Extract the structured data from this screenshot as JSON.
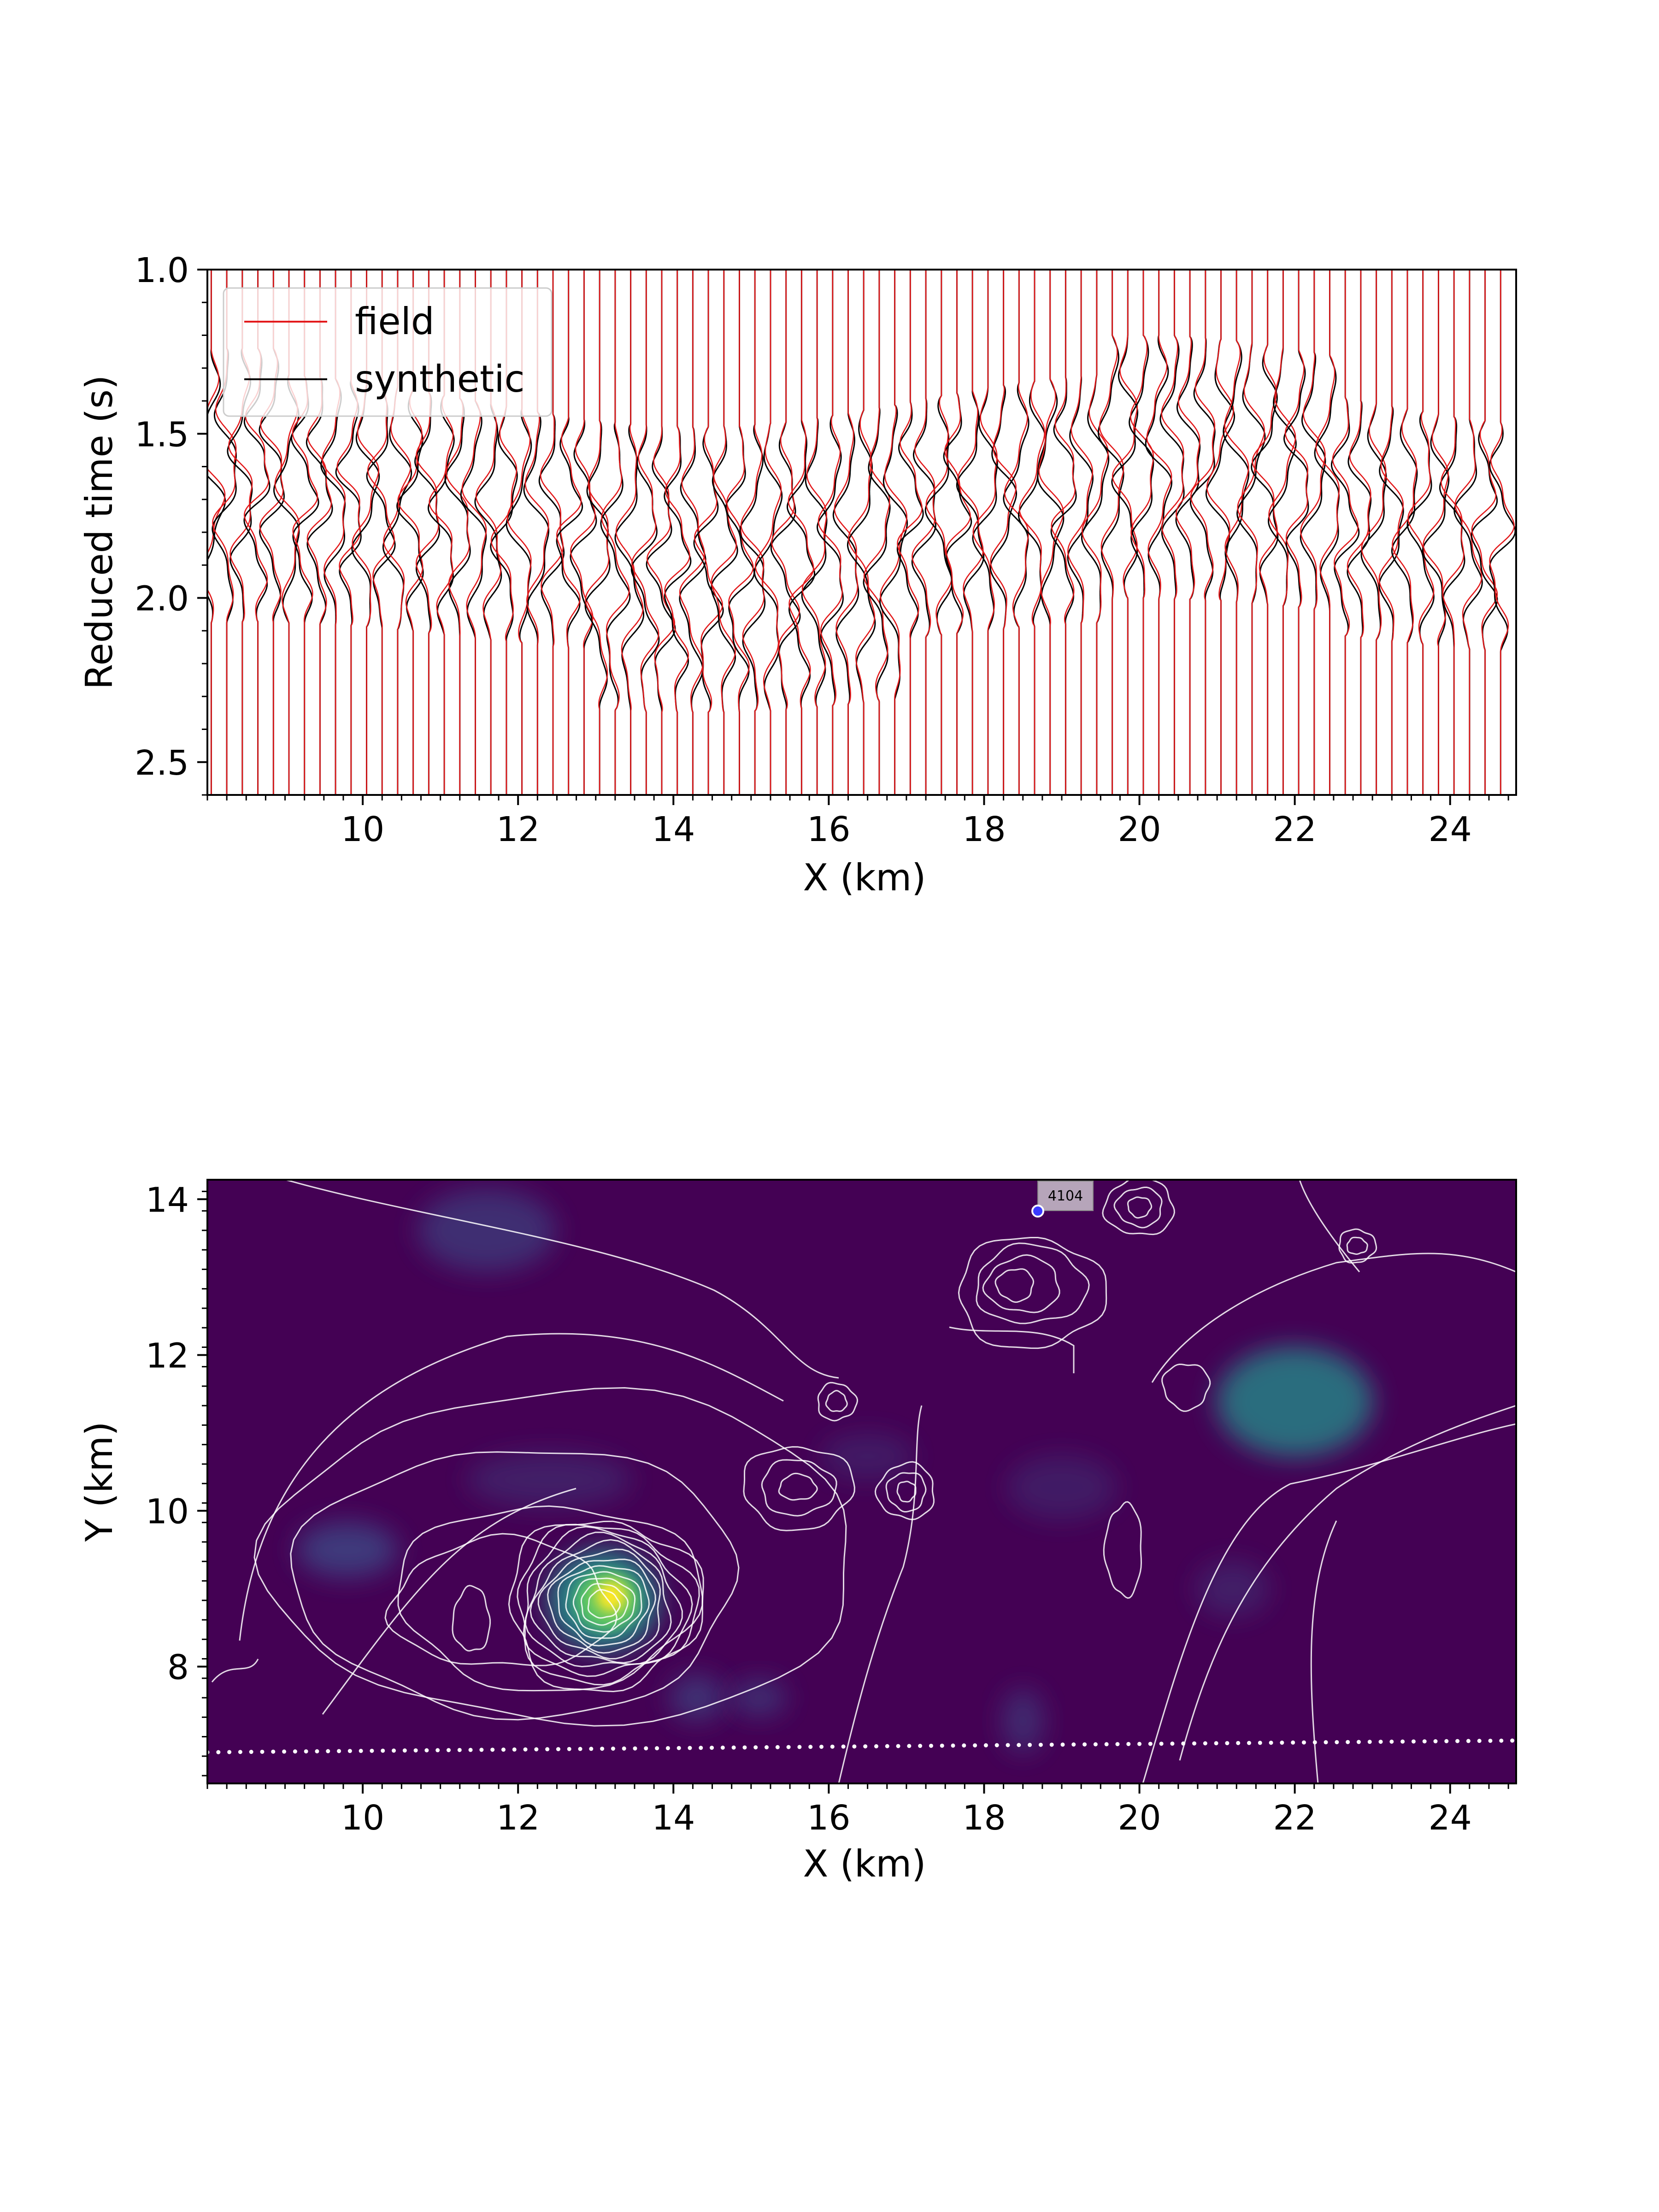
{
  "chart_data": [
    {
      "type": "line",
      "description_role": "wiggle traces (seismic record section)",
      "xlabel": "X (km)",
      "ylabel": "Reduced time (s)",
      "xlim": [
        8.0,
        24.85
      ],
      "ylim": [
        2.6,
        1.0
      ],
      "y_inverted": true,
      "xticks": [
        "10",
        "12",
        "14",
        "16",
        "18",
        "20",
        "22",
        "24"
      ],
      "yticks": [
        "1.0",
        "1.5",
        "2.0",
        "2.5"
      ],
      "legend": {
        "placement": "upper-left",
        "entries": [
          {
            "label": "field",
            "color": "#e31a1c"
          },
          {
            "label": "synthetic",
            "color": "#000000"
          }
        ]
      },
      "series": [
        {
          "name": "field",
          "color": "#e31a1c"
        },
        {
          "name": "synthetic",
          "color": "#000000"
        }
      ],
      "trace_spacing_km": 0.2,
      "trace_count": 84,
      "signal_window_s": [
        1.3,
        2.3
      ],
      "grid": false
    },
    {
      "type": "heatmap",
      "description_role": "map view with colour field, white contours, station positions",
      "xlabel": "X (km)",
      "ylabel": "Y (km)",
      "xlim": [
        8.0,
        24.85
      ],
      "ylim": [
        6.5,
        14.25
      ],
      "xticks": [
        "10",
        "12",
        "14",
        "16",
        "18",
        "20",
        "22",
        "24"
      ],
      "yticks": [
        "8",
        "10",
        "12",
        "14"
      ],
      "colormap": [
        "#440154",
        "#3b528b",
        "#21918c",
        "#5ec962",
        "#fde725"
      ],
      "peak": {
        "x": 13.15,
        "y": 8.85
      },
      "contour_color": "#ffffff",
      "receiver_line": {
        "x_start": 8.0,
        "x_end": 24.8,
        "y_start": 6.9,
        "y_end": 7.05
      },
      "source": {
        "label": "4104",
        "x": 18.65,
        "y": 13.8
      },
      "grid": false
    }
  ]
}
